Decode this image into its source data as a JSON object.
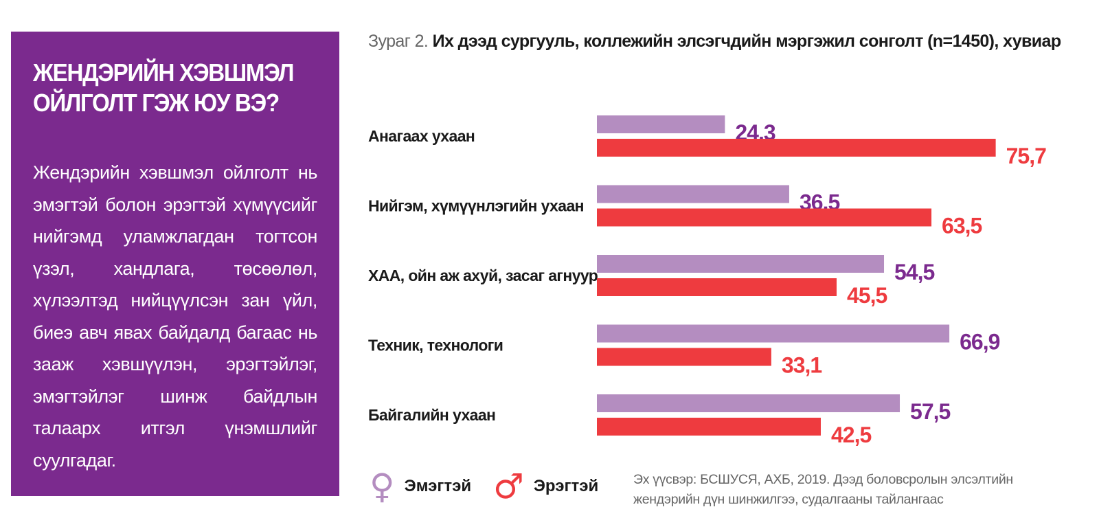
{
  "sidebar": {
    "title": "ЖЕНДЭРИЙН ХЭВШМЭЛ\nОЙЛГОЛТ ГЭЖ ЮУ ВЭ?",
    "body": "Жендэрийн хэвшмэл ойлголт нь эмэгтэй болон эрэгтэй хүмүүсийг нийгэмд уламжлагдан тогтсон үзэл, хандлага, төсөөлөл, хүлээлтэд нийцүүлсэн зан үйл, биеэ авч явах байдалд багаас нь зааж хэвшүүлэн, эрэгтэйлэг, эмэгтэйлэг шинж байдлын талаарх итгэл үнэмшлийг суулгадаг."
  },
  "caption": {
    "prefix": "Зураг 2.",
    "title": "Их дээд сургууль, коллежийн элсэгчдийн мэргэжил сонголт (n=1450), хувиар"
  },
  "chart_data": {
    "type": "bar",
    "orientation": "horizontal",
    "categories": [
      "Анагаах ухаан",
      "Нийгэм, хүмүүнлэгийн ухаан",
      "ХАА, ойн аж ахуй, засаг агнуур",
      "Техник, технологи",
      "Байгалийн ухаан"
    ],
    "series": [
      {
        "name": "Эмэгтэй",
        "values": [
          24.3,
          36.5,
          54.5,
          66.9,
          57.5
        ],
        "labels": [
          "24,3",
          "36,5",
          "54,5",
          "66,9",
          "57,5"
        ],
        "color": "#b48dc0",
        "label_color": "#7b2a8e"
      },
      {
        "name": "Эрэгтэй",
        "values": [
          75.7,
          63.5,
          45.5,
          33.1,
          42.5
        ],
        "labels": [
          "75,7",
          "63,5",
          "45,5",
          "33,1",
          "42,5"
        ],
        "color": "#ee3b3f",
        "label_color": "#ee3b3f"
      }
    ],
    "xlim": [
      0,
      100
    ],
    "grid": false,
    "legend": "bottom-left"
  },
  "legend": {
    "female_symbol": "♀",
    "female_label": "Эмэгтэй",
    "female_color": "#b48dc0",
    "male_symbol": "♂",
    "male_label": "Эрэгтэй",
    "male_color": "#ee3b3f"
  },
  "source": "Эх үүсвэр: БСШУСЯ, АХБ, 2019. Дээд боловсролын элсэлтийн жендэрийн дүн шинжилгээ, судалгааны тайлангаас"
}
